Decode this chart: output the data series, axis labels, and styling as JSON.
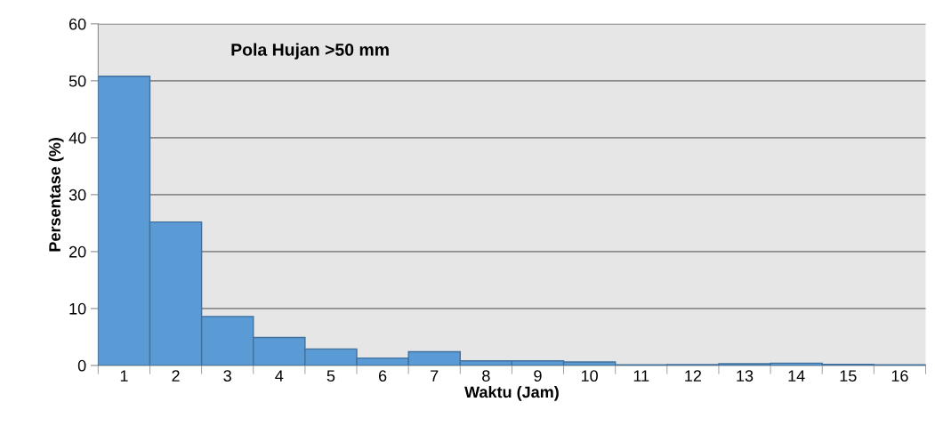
{
  "chart_data": {
    "type": "bar",
    "title": "Pola Hujan >50 mm",
    "xlabel": "Waktu (Jam)",
    "ylabel": "Persentase (%)",
    "categories": [
      "1",
      "2",
      "3",
      "4",
      "5",
      "6",
      "7",
      "8",
      "9",
      "10",
      "11",
      "12",
      "13",
      "14",
      "15",
      "16"
    ],
    "values": [
      50.8,
      25.2,
      8.6,
      4.9,
      2.9,
      1.3,
      2.4,
      0.8,
      0.8,
      0.6,
      0.1,
      0.15,
      0.3,
      0.4,
      0.2,
      0.1
    ],
    "color": "#5b9bd5",
    "ylim": [
      0,
      60
    ],
    "yticks": [
      0,
      10,
      20,
      30,
      40,
      50,
      60
    ],
    "grid": "y",
    "legend": false
  }
}
